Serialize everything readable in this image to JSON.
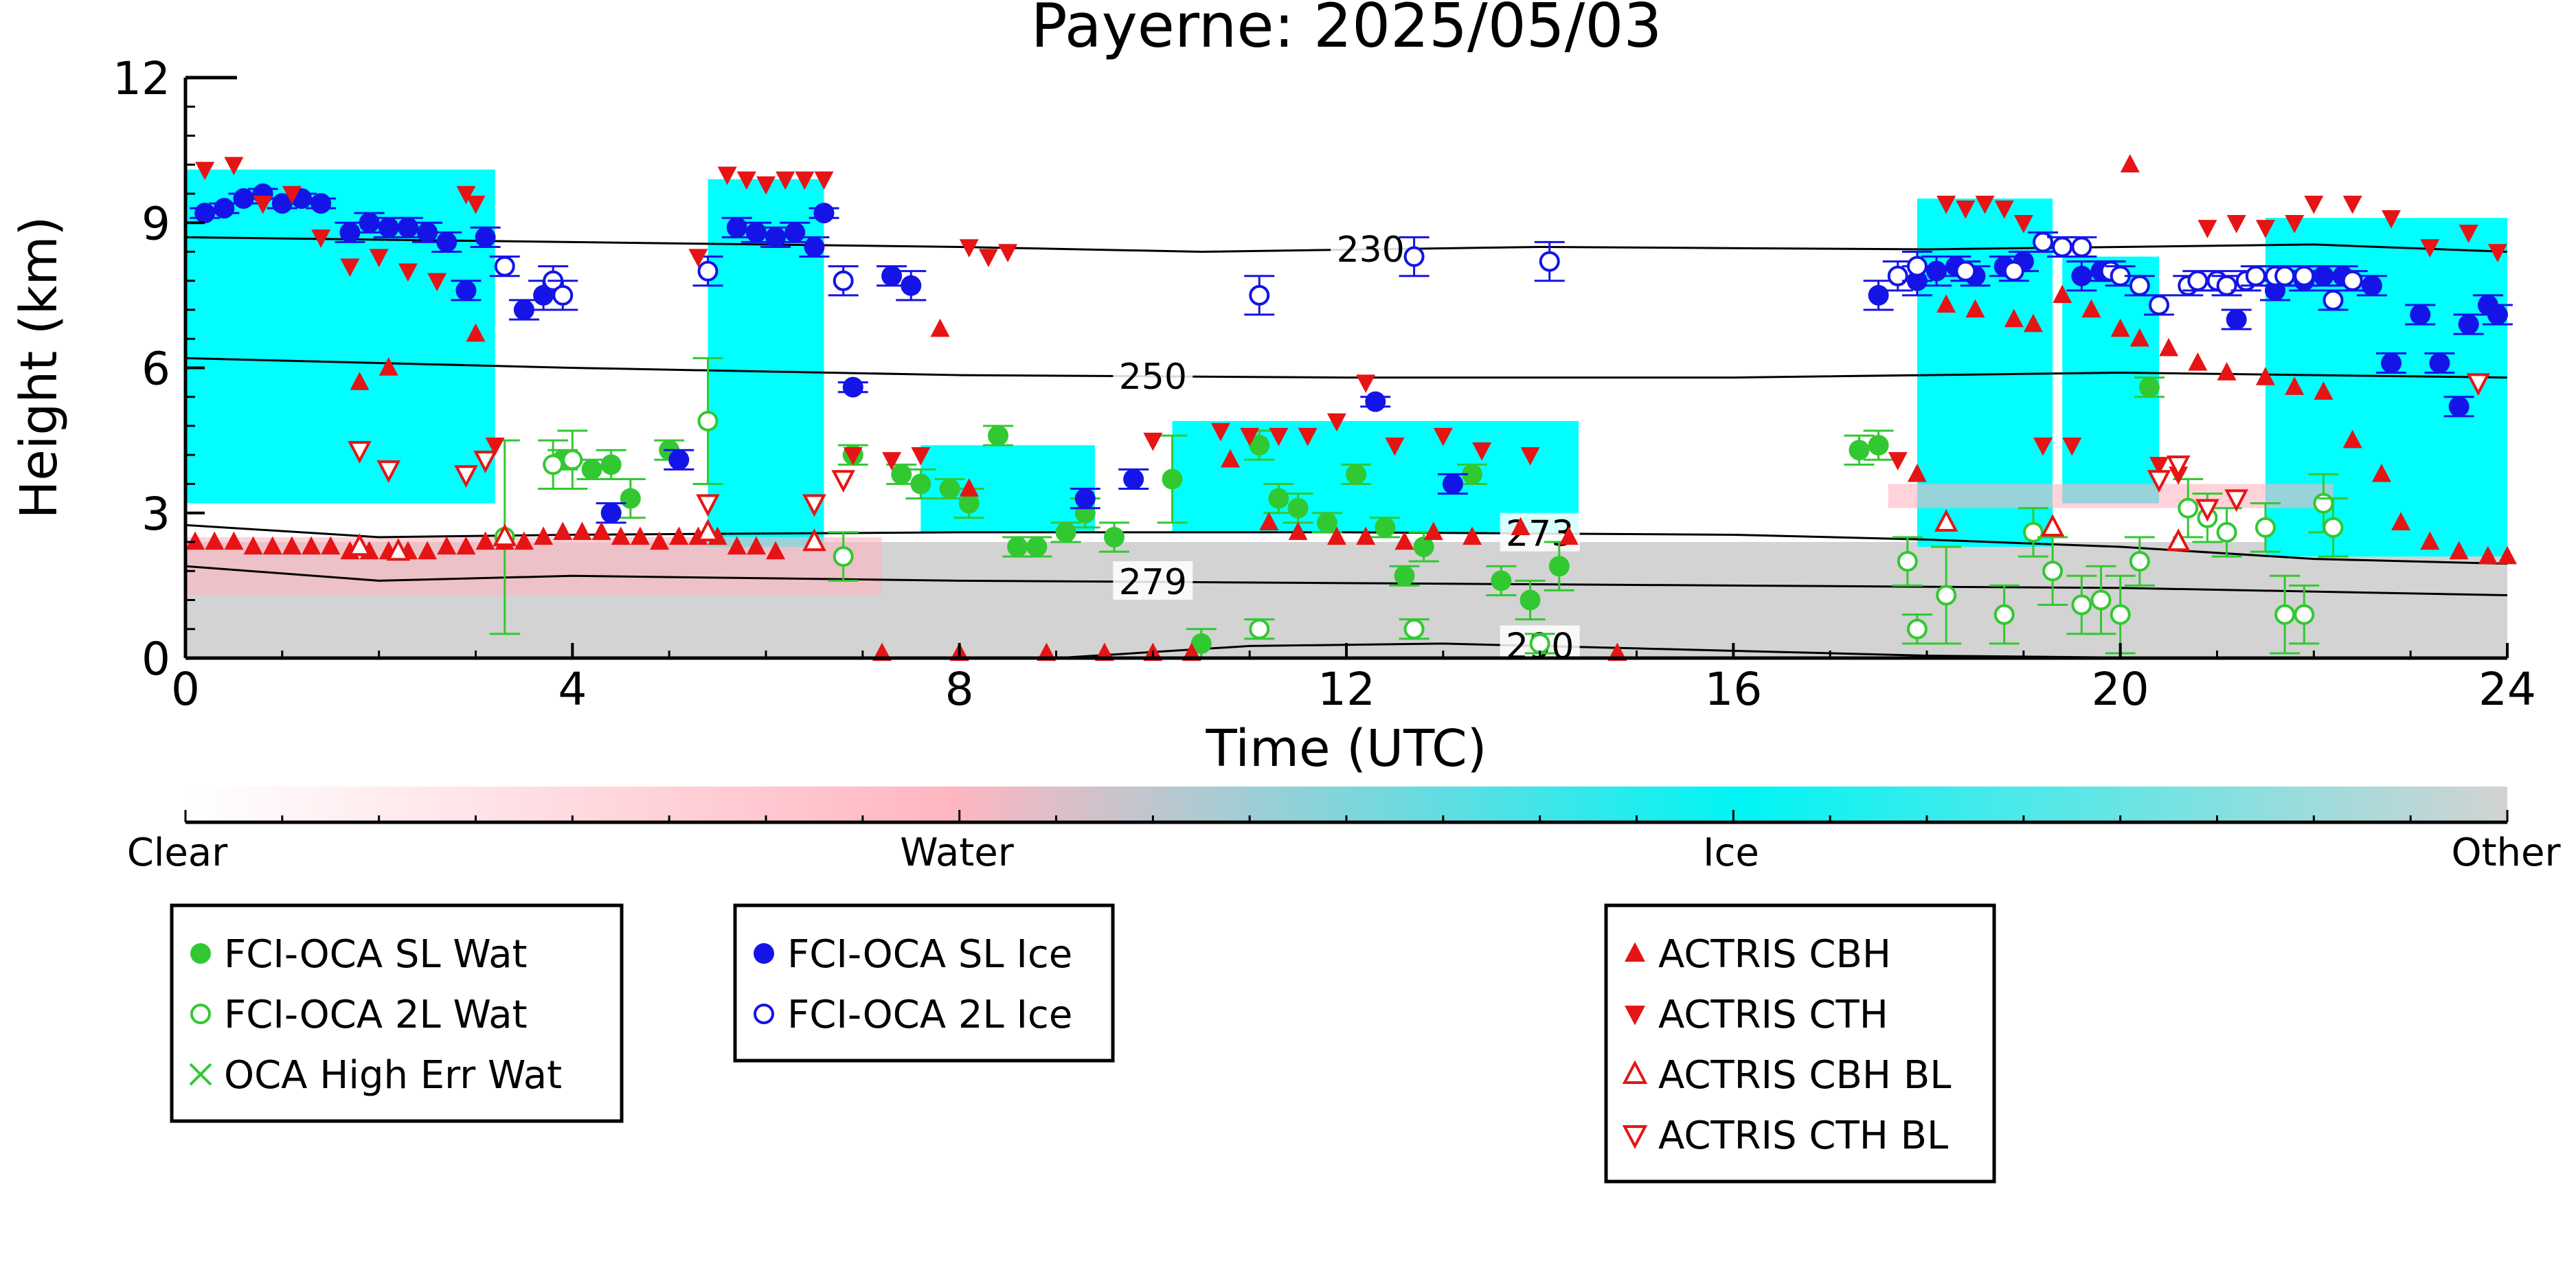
{
  "chart_data": {
    "type": "scatter",
    "title": "Payerne: 2025/05/03",
    "xlabel": "Time (UTC)",
    "ylabel": "Height (km)",
    "xlim": [
      0,
      24
    ],
    "ylim": [
      0,
      12
    ],
    "x_ticks": [
      "0",
      "4",
      "8",
      "12",
      "16",
      "20",
      "24"
    ],
    "y_ticks": [
      "0",
      "3",
      "6",
      "9",
      "12"
    ],
    "colorbar": {
      "labels": [
        "Clear",
        "Water",
        "Ice",
        "Other"
      ],
      "colors": [
        "#ffffff",
        "#ffb6c1",
        "#00ffff",
        "#d3d3d3"
      ]
    },
    "isotherms": [
      {
        "label": "230",
        "x": [
          0,
          4,
          8,
          10.5,
          14,
          18,
          22,
          24
        ],
        "y": [
          8.7,
          8.6,
          8.5,
          8.4,
          8.5,
          8.45,
          8.55,
          8.4
        ]
      },
      {
        "label": "250",
        "x": [
          0,
          4,
          8,
          12,
          16,
          20,
          24
        ],
        "y": [
          6.2,
          6.0,
          5.85,
          5.8,
          5.8,
          5.9,
          5.8
        ]
      },
      {
        "label": "273",
        "x": [
          0,
          2,
          4,
          8,
          12,
          16,
          18,
          20,
          22,
          24
        ],
        "y": [
          2.75,
          2.5,
          2.55,
          2.6,
          2.6,
          2.55,
          2.45,
          2.3,
          2.05,
          1.95
        ]
      },
      {
        "label": "279",
        "x": [
          0,
          2,
          4,
          8,
          12,
          16,
          20,
          24
        ],
        "y": [
          1.9,
          1.6,
          1.7,
          1.6,
          1.55,
          1.5,
          1.45,
          1.3
        ]
      },
      {
        "label": "290",
        "x": [
          9,
          11,
          13,
          15,
          18,
          20.5
        ],
        "y": [
          0,
          0.25,
          0.3,
          0.2,
          0.05,
          0
        ]
      }
    ],
    "background_segments": [
      {
        "class": "Other",
        "x0": 0,
        "x1": 24,
        "y0": 0,
        "y1": 2.4
      },
      {
        "class": "Ice",
        "x0": 0,
        "x1": 3.2,
        "y0": 3.2,
        "y1": 10.1
      },
      {
        "class": "Ice",
        "x0": 5.4,
        "x1": 6.6,
        "y0": 2.3,
        "y1": 9.9
      },
      {
        "class": "Ice",
        "x0": 17.9,
        "x1": 19.3,
        "y0": 2.3,
        "y1": 9.5
      },
      {
        "class": "Ice",
        "x0": 19.4,
        "x1": 20.4,
        "y0": 3.2,
        "y1": 8.3
      },
      {
        "class": "Ice",
        "x0": 21.5,
        "x1": 24,
        "y0": 2.1,
        "y1": 9.1
      },
      {
        "class": "Ice",
        "x0": 10.2,
        "x1": 14.4,
        "y0": 2.6,
        "y1": 4.9
      },
      {
        "class": "Ice",
        "x0": 7.6,
        "x1": 9.4,
        "y0": 2.6,
        "y1": 4.4
      },
      {
        "class": "Water",
        "x0": 0,
        "x1": 7.2,
        "y0": 1.3,
        "y1": 2.5
      },
      {
        "class": "Water",
        "x0": 17.6,
        "x1": 22.2,
        "y0": 3.1,
        "y1": 3.6
      }
    ],
    "series": [
      {
        "name": "FCI-OCA SL Wat",
        "marker": "filled-circle",
        "color": "#32c832",
        "x": [
          3.9,
          4.2,
          4.4,
          4.6,
          5.0,
          6.9,
          7.4,
          7.6,
          7.9,
          8.1,
          8.4,
          8.6,
          8.8,
          9.1,
          9.3,
          9.6,
          10.2,
          10.5,
          11.1,
          11.3,
          11.5,
          11.8,
          12.1,
          12.4,
          12.6,
          12.8,
          13.3,
          13.6,
          13.9,
          14.2,
          17.3,
          17.5,
          20.3
        ],
        "y": [
          4.1,
          3.9,
          4.0,
          3.3,
          4.3,
          4.2,
          3.8,
          3.6,
          3.5,
          3.2,
          4.6,
          2.3,
          2.3,
          2.6,
          3.0,
          2.5,
          3.7,
          0.3,
          4.4,
          3.3,
          3.1,
          2.8,
          3.8,
          2.7,
          1.7,
          2.3,
          3.8,
          1.6,
          1.2,
          1.9,
          4.3,
          4.4,
          5.6
        ],
        "yerr_low": [
          0.2,
          0.2,
          0.3,
          0.4,
          0.2,
          0.2,
          0.2,
          0.3,
          0.2,
          0.3,
          0.2,
          0.2,
          0.2,
          0.2,
          0.3,
          0.3,
          0.9,
          0.3,
          0.3,
          0.3,
          0.3,
          0.2,
          0.2,
          0.2,
          0.2,
          0.3,
          0.2,
          0.3,
          0.4,
          0.5,
          0.3,
          0.3,
          0.2
        ],
        "yerr_high": [
          0.2,
          0.2,
          0.3,
          0.4,
          0.2,
          0.2,
          0.2,
          0.3,
          0.2,
          0.3,
          0.2,
          0.2,
          0.2,
          0.2,
          0.3,
          0.3,
          0.9,
          0.3,
          0.3,
          0.3,
          0.3,
          0.2,
          0.2,
          0.2,
          0.2,
          0.3,
          0.2,
          0.3,
          0.4,
          0.5,
          0.3,
          0.3,
          0.2
        ]
      },
      {
        "name": "FCI-OCA 2L Wat",
        "marker": "open-circle",
        "color": "#32c832",
        "x": [
          3.3,
          3.8,
          4.0,
          5.4,
          6.8,
          11.1,
          12.7,
          14.0,
          17.8,
          17.9,
          18.2,
          18.8,
          19.1,
          19.3,
          19.6,
          19.8,
          20.0,
          20.2,
          20.7,
          20.9,
          21.1,
          21.5,
          21.7,
          21.9,
          22.1,
          22.2
        ],
        "y": [
          2.5,
          4.0,
          4.1,
          4.9,
          2.1,
          0.6,
          0.6,
          0.3,
          2.0,
          0.6,
          1.3,
          0.9,
          2.6,
          1.8,
          1.1,
          1.2,
          0.9,
          2.0,
          3.1,
          2.9,
          2.6,
          2.7,
          0.9,
          0.9,
          3.2,
          2.7
        ],
        "yerr_low": [
          2.0,
          0.5,
          0.6,
          1.3,
          0.5,
          0.2,
          0.2,
          0.2,
          0.5,
          0.3,
          1.0,
          0.6,
          0.5,
          0.7,
          0.6,
          0.7,
          0.8,
          0.5,
          0.6,
          0.5,
          0.5,
          0.5,
          0.8,
          0.6,
          0.6,
          0.6
        ],
        "yerr_high": [
          2.0,
          0.5,
          0.6,
          1.3,
          0.5,
          0.2,
          0.2,
          0.2,
          0.5,
          0.3,
          1.0,
          0.6,
          0.5,
          0.7,
          0.6,
          0.7,
          0.8,
          0.5,
          0.6,
          0.5,
          0.5,
          0.5,
          0.8,
          0.6,
          0.6,
          0.6
        ]
      },
      {
        "name": "OCA High Err Wat",
        "marker": "x",
        "color": "#32c832",
        "x": [],
        "y": []
      },
      {
        "name": "FCI-OCA SL Ice",
        "marker": "filled-circle",
        "color": "#1414e6",
        "x": [
          0.2,
          0.4,
          0.6,
          0.8,
          1.0,
          1.2,
          1.4,
          1.7,
          1.9,
          2.1,
          2.3,
          2.5,
          2.7,
          2.9,
          3.1,
          3.5,
          3.7,
          4.4,
          5.1,
          5.7,
          5.9,
          6.1,
          6.3,
          6.5,
          6.6,
          6.9,
          7.3,
          7.5,
          9.3,
          9.8,
          12.3,
          13.1,
          17.5,
          17.9,
          18.1,
          18.3,
          18.5,
          18.8,
          19.0,
          19.6,
          19.8,
          21.2,
          21.6,
          21.9,
          22.1,
          22.3,
          22.6,
          22.8,
          23.1,
          23.3,
          23.5,
          23.6,
          23.8,
          23.9
        ],
        "y": [
          9.2,
          9.3,
          9.5,
          9.6,
          9.4,
          9.5,
          9.4,
          8.8,
          9.0,
          8.9,
          8.9,
          8.8,
          8.6,
          7.6,
          8.7,
          7.2,
          7.5,
          3.0,
          4.1,
          8.9,
          8.8,
          8.7,
          8.8,
          8.5,
          9.2,
          5.6,
          7.9,
          7.7,
          3.3,
          3.7,
          5.3,
          3.6,
          7.5,
          7.8,
          8.0,
          8.1,
          7.9,
          8.1,
          8.2,
          7.9,
          8.0,
          7.0,
          7.6,
          7.8,
          7.9,
          7.9,
          7.7,
          6.1,
          7.1,
          6.1,
          5.2,
          6.9,
          7.3,
          7.1
        ],
        "yerr_low": [
          0.1,
          0.1,
          0.1,
          0.1,
          0.1,
          0.1,
          0.1,
          0.2,
          0.2,
          0.2,
          0.2,
          0.2,
          0.2,
          0.2,
          0.2,
          0.2,
          0.3,
          0.2,
          0.2,
          0.2,
          0.2,
          0.2,
          0.2,
          0.2,
          0.1,
          0.1,
          0.2,
          0.3,
          0.2,
          0.2,
          0.1,
          0.2,
          0.3,
          0.3,
          0.3,
          0.2,
          0.2,
          0.2,
          0.2,
          0.3,
          0.2,
          0.2,
          0.2,
          0.2,
          0.2,
          0.2,
          0.2,
          0.2,
          0.2,
          0.2,
          0.2,
          0.2,
          0.2,
          0.2
        ],
        "yerr_high": [
          0.1,
          0.1,
          0.1,
          0.1,
          0.1,
          0.1,
          0.1,
          0.2,
          0.2,
          0.2,
          0.2,
          0.2,
          0.2,
          0.2,
          0.2,
          0.2,
          0.3,
          0.2,
          0.2,
          0.2,
          0.2,
          0.2,
          0.2,
          0.2,
          0.1,
          0.1,
          0.2,
          0.3,
          0.2,
          0.2,
          0.1,
          0.2,
          0.3,
          0.3,
          0.3,
          0.2,
          0.2,
          0.2,
          0.2,
          0.3,
          0.2,
          0.2,
          0.2,
          0.2,
          0.2,
          0.2,
          0.2,
          0.2,
          0.2,
          0.2,
          0.2,
          0.2,
          0.2,
          0.2
        ]
      },
      {
        "name": "FCI-OCA 2L Ice",
        "marker": "open-circle",
        "color": "#1414e6",
        "x": [
          3.3,
          3.8,
          3.9,
          5.4,
          6.8,
          11.1,
          12.7,
          14.1,
          17.7,
          17.9,
          18.4,
          18.9,
          19.2,
          19.4,
          19.6,
          19.9,
          20.0,
          20.2,
          20.4,
          20.7,
          20.8,
          21.0,
          21.1,
          21.3,
          21.4,
          21.6,
          21.7,
          21.9,
          22.2,
          22.4
        ],
        "y": [
          8.1,
          7.8,
          7.5,
          8.0,
          7.8,
          7.5,
          8.3,
          8.2,
          7.9,
          8.1,
          8.0,
          8.0,
          8.6,
          8.5,
          8.5,
          8.0,
          7.9,
          7.7,
          7.3,
          7.7,
          7.8,
          7.8,
          7.7,
          7.8,
          7.9,
          7.9,
          7.9,
          7.9,
          7.4,
          7.8
        ],
        "yerr_low": [
          0.2,
          0.3,
          0.3,
          0.3,
          0.3,
          0.4,
          0.4,
          0.4,
          0.3,
          0.3,
          0.2,
          0.2,
          0.2,
          0.2,
          0.2,
          0.2,
          0.2,
          0.2,
          0.2,
          0.2,
          0.2,
          0.2,
          0.2,
          0.2,
          0.2,
          0.2,
          0.2,
          0.2,
          0.2,
          0.2
        ],
        "yerr_high": [
          0.2,
          0.3,
          0.3,
          0.3,
          0.3,
          0.4,
          0.4,
          0.4,
          0.3,
          0.3,
          0.2,
          0.2,
          0.2,
          0.2,
          0.2,
          0.2,
          0.2,
          0.2,
          0.2,
          0.2,
          0.2,
          0.2,
          0.2,
          0.2,
          0.2,
          0.2,
          0.2,
          0.2,
          0.2,
          0.2
        ]
      },
      {
        "name": "ACTRIS CBH",
        "marker": "triangle-up",
        "color": "#e61414",
        "x": [
          0.1,
          0.3,
          0.5,
          0.7,
          0.9,
          1.1,
          1.3,
          1.5,
          1.7,
          1.9,
          2.1,
          2.3,
          2.5,
          2.7,
          2.9,
          3.1,
          3.3,
          3.5,
          3.7,
          3.9,
          4.1,
          4.3,
          4.5,
          4.7,
          4.9,
          5.1,
          5.3,
          5.5,
          5.7,
          5.9,
          6.1,
          1.8,
          2.1,
          3.0,
          7.2,
          8.0,
          8.1,
          7.8,
          8.9,
          9.5,
          10.0,
          10.4,
          10.8,
          11.2,
          11.5,
          11.9,
          12.2,
          12.6,
          12.9,
          13.3,
          13.8,
          14.3,
          14.8,
          17.9,
          18.2,
          18.5,
          18.9,
          19.1,
          19.4,
          19.7,
          20.0,
          20.2,
          20.5,
          20.8,
          21.1,
          21.5,
          21.8,
          22.1,
          22.4,
          22.7,
          22.9,
          23.2,
          23.5,
          23.8,
          24.0,
          20.1
        ],
        "y": [
          2.4,
          2.4,
          2.4,
          2.3,
          2.3,
          2.3,
          2.3,
          2.3,
          2.2,
          2.2,
          2.2,
          2.2,
          2.2,
          2.3,
          2.3,
          2.4,
          2.4,
          2.4,
          2.5,
          2.6,
          2.6,
          2.6,
          2.5,
          2.5,
          2.4,
          2.5,
          2.5,
          2.5,
          2.3,
          2.3,
          2.2,
          5.7,
          6.0,
          6.7,
          0.1,
          0.1,
          3.5,
          6.8,
          0.1,
          0.1,
          0.1,
          0.1,
          4.1,
          2.8,
          2.6,
          2.5,
          2.5,
          2.4,
          2.6,
          2.5,
          2.7,
          2.5,
          0.1,
          3.8,
          7.3,
          7.2,
          7.0,
          6.9,
          7.5,
          7.2,
          6.8,
          6.6,
          6.4,
          6.1,
          5.9,
          5.8,
          5.6,
          5.5,
          4.5,
          3.8,
          2.8,
          2.4,
          2.2,
          2.1,
          2.1,
          10.2
        ]
      },
      {
        "name": "ACTRIS CTH",
        "marker": "triangle-down",
        "color": "#e61414",
        "x": [
          0.2,
          0.5,
          0.8,
          1.1,
          1.4,
          1.7,
          2.0,
          2.3,
          2.6,
          2.9,
          3.0,
          3.2,
          5.3,
          5.6,
          5.8,
          6.0,
          6.2,
          6.4,
          6.6,
          6.9,
          7.3,
          7.6,
          8.1,
          8.3,
          8.5,
          10.0,
          10.7,
          11.0,
          11.3,
          11.6,
          11.9,
          12.2,
          12.5,
          13.0,
          13.4,
          13.9,
          17.7,
          18.2,
          18.4,
          18.6,
          18.8,
          19.0,
          19.2,
          19.5,
          20.4,
          20.6,
          20.9,
          21.2,
          21.5,
          21.8,
          22.0,
          22.4,
          22.8,
          23.2,
          23.6,
          23.9
        ],
        "y": [
          10.1,
          10.2,
          9.4,
          9.6,
          8.7,
          8.1,
          8.3,
          8.0,
          7.8,
          9.6,
          9.4,
          4.4,
          8.3,
          10.0,
          9.9,
          9.8,
          9.9,
          9.9,
          9.9,
          4.2,
          4.1,
          4.2,
          8.5,
          8.3,
          8.4,
          4.5,
          4.7,
          4.6,
          4.6,
          4.6,
          4.9,
          5.7,
          4.4,
          4.6,
          4.3,
          4.2,
          4.1,
          9.4,
          9.3,
          9.4,
          9.3,
          9.0,
          4.4,
          4.4,
          4.0,
          3.8,
          8.9,
          9.0,
          8.9,
          9.0,
          9.4,
          9.4,
          9.1,
          8.5,
          8.8,
          8.4
        ]
      },
      {
        "name": "ACTRIS CBH BL",
        "marker": "open-triangle-up",
        "color": "#e61414",
        "x": [
          1.8,
          2.2,
          3.3,
          5.4,
          6.5,
          18.2,
          19.3,
          20.6
        ],
        "y": [
          2.3,
          2.2,
          2.5,
          2.6,
          2.4,
          2.8,
          2.7,
          2.4
        ]
      },
      {
        "name": "ACTRIS CTH BL",
        "marker": "open-triangle-down",
        "color": "#e61414",
        "x": [
          1.8,
          2.1,
          2.9,
          3.1,
          5.4,
          6.5,
          6.8,
          20.4,
          20.6,
          20.9,
          21.2,
          23.7
        ],
        "y": [
          4.3,
          3.9,
          3.8,
          4.1,
          3.2,
          3.2,
          3.7,
          3.7,
          4.0,
          3.1,
          3.3,
          5.7
        ]
      }
    ],
    "legend": {
      "boxes": [
        {
          "entries": [
            "FCI-OCA SL Wat",
            "FCI-OCA 2L Wat",
            "OCA High Err Wat"
          ]
        },
        {
          "entries": [
            "FCI-OCA SL Ice",
            "FCI-OCA 2L Ice"
          ]
        },
        {
          "entries": [
            "ACTRIS CBH",
            "ACTRIS CTH",
            "ACTRIS CBH BL",
            "ACTRIS CTH BL"
          ]
        }
      ],
      "placement": "below"
    }
  }
}
